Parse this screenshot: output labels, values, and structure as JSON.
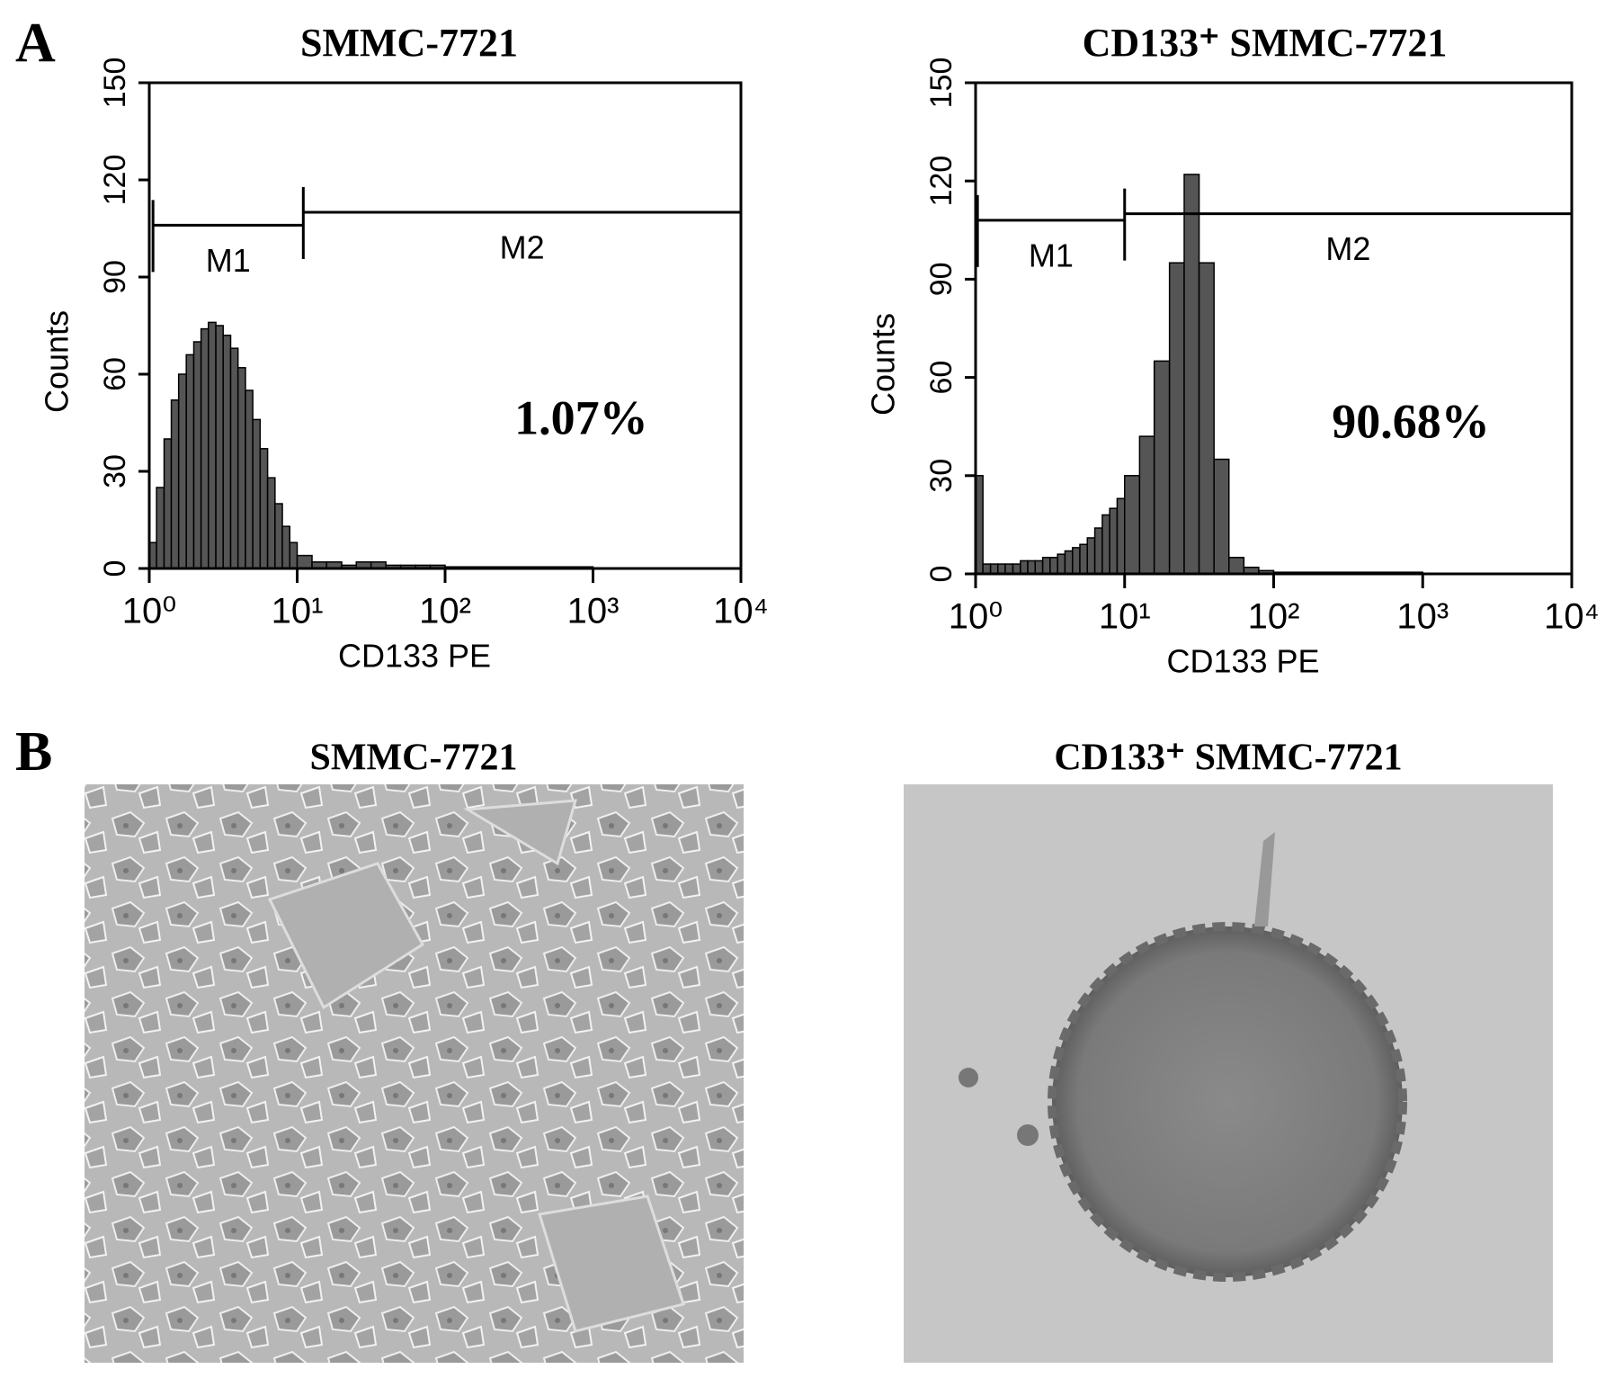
{
  "panel_labels": [
    "A",
    "B"
  ],
  "chart_data": [
    {
      "type": "histogram",
      "title": "SMMC-7721",
      "xlabel": "CD133 PE",
      "ylabel": "Counts",
      "log_x": true,
      "color": "#555555",
      "xlim": [
        1,
        10000
      ],
      "xticks": [
        {
          "value": 1,
          "label": "10⁰"
        },
        {
          "value": 10,
          "label": "10¹"
        },
        {
          "value": 100,
          "label": "10²"
        },
        {
          "value": 1000,
          "label": "10³"
        },
        {
          "value": 10000,
          "label": "10⁴"
        }
      ],
      "ylim": [
        0,
        150
      ],
      "yticks": [
        0,
        30,
        60,
        90,
        120,
        150
      ],
      "bins": [
        1,
        1.12,
        1.26,
        1.41,
        1.58,
        1.78,
        2,
        2.24,
        2.51,
        2.82,
        3.16,
        3.55,
        3.98,
        4.47,
        5.01,
        5.62,
        6.31,
        7.08,
        7.94,
        8.91,
        10,
        12.6,
        15.8,
        20,
        25.1,
        31.6,
        39.8,
        50.1,
        63.1,
        79.4,
        100,
        1000,
        10000
      ],
      "values": [
        8,
        25,
        40,
        52,
        60,
        66,
        70,
        74,
        76,
        75,
        72,
        68,
        62,
        55,
        46,
        37,
        28,
        20,
        13,
        8,
        4,
        2,
        2,
        1,
        2,
        2,
        1,
        1,
        1,
        1,
        0.5,
        0
      ],
      "markers": [
        {
          "label": "M1",
          "range": [
            1.06,
            11
          ],
          "y": 106
        },
        {
          "label": "M2",
          "range": [
            11,
            10000
          ],
          "y": 110
        }
      ],
      "annotation": "1.07%"
    },
    {
      "type": "histogram",
      "title": "CD133⁺ SMMC-7721",
      "xlabel": "CD133 PE",
      "ylabel": "Counts",
      "log_x": true,
      "color": "#555555",
      "xlim": [
        1,
        10000
      ],
      "xticks": [
        {
          "value": 1,
          "label": "10⁰"
        },
        {
          "value": 10,
          "label": "10¹"
        },
        {
          "value": 100,
          "label": "10²"
        },
        {
          "value": 1000,
          "label": "10³"
        },
        {
          "value": 10000,
          "label": "10⁴"
        }
      ],
      "ylim": [
        0,
        150
      ],
      "yticks": [
        0,
        30,
        60,
        90,
        120,
        150
      ],
      "bins": [
        1,
        1.12,
        1.26,
        1.41,
        1.58,
        1.78,
        2,
        2.24,
        2.51,
        2.82,
        3.16,
        3.55,
        3.98,
        4.47,
        5.01,
        5.62,
        6.31,
        7.08,
        7.94,
        8.91,
        10,
        12.6,
        15.8,
        20,
        25.1,
        31.6,
        39.8,
        50.1,
        63.1,
        79.4,
        100,
        1000,
        10000
      ],
      "values": [
        30,
        3,
        3,
        3,
        3,
        3,
        4,
        4,
        4,
        5,
        5,
        6,
        7,
        8,
        9,
        11,
        14,
        18,
        20,
        23,
        30,
        42,
        65,
        95,
        122,
        95,
        35,
        5,
        2,
        1,
        0.5,
        0
      ],
      "markers": [
        {
          "label": "M1",
          "range": [
            1.03,
            10
          ],
          "y": 108
        },
        {
          "label": "M2",
          "range": [
            10,
            10000
          ],
          "y": 110
        }
      ],
      "annotation": "90.68%"
    }
  ],
  "images": [
    {
      "title": "SMMC-7721"
    },
    {
      "title": "CD133⁺ SMMC-7721"
    }
  ]
}
